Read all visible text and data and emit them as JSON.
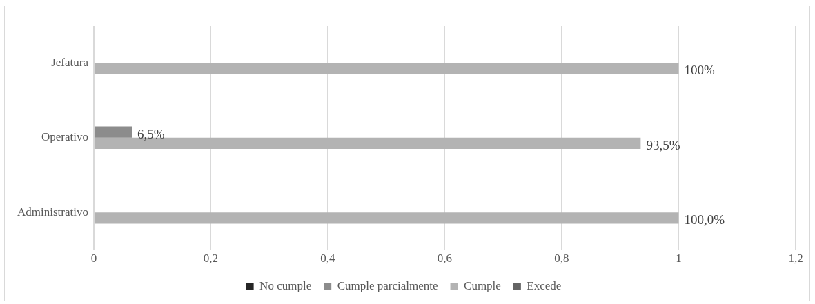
{
  "chart_data": {
    "type": "bar",
    "orientation": "horizontal",
    "categories": [
      "Jefatura",
      "Operativo",
      "Administrativo"
    ],
    "series": [
      {
        "name": "No cumple",
        "color": "#262626",
        "values": [
          null,
          null,
          null
        ]
      },
      {
        "name": "Cumple parcialmente",
        "color": "#8c8c8c",
        "values": [
          null,
          0.065,
          null
        ],
        "value_labels": [
          null,
          "6,5%",
          null
        ]
      },
      {
        "name": "Cumple",
        "color": "#b3b3b3",
        "values": [
          1,
          0.935,
          1
        ],
        "value_labels": [
          "100%",
          "93,5%",
          "100,0%"
        ]
      },
      {
        "name": "Excede",
        "color": "#646464",
        "values": [
          null,
          null,
          null
        ]
      }
    ],
    "xlim": [
      0,
      1.2
    ],
    "xticks": [
      0,
      {
        "value": 0.2,
        "label": "0,2"
      },
      {
        "value": 0.4,
        "label": "0,4"
      },
      {
        "value": 0.6,
        "label": "0,6"
      },
      {
        "value": 0.8,
        "label": "0,8"
      },
      1,
      {
        "value": 1.2,
        "label": "1,2"
      }
    ],
    "grid": "x",
    "legend": "bottom"
  }
}
